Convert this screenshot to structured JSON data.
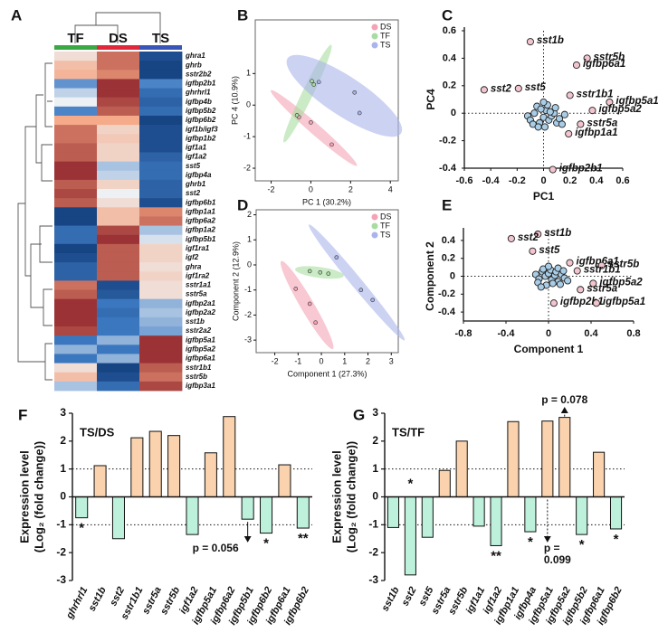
{
  "chart_data": [
    {
      "type": "heatmap",
      "panel": "A",
      "columns": [
        {
          "name": "TF",
          "color": "#3aa845"
        },
        {
          "name": "DS",
          "color": "#e0283c"
        },
        {
          "name": "TS",
          "color": "#3a55b8"
        }
      ],
      "rows": [
        "ghra1",
        "ghrb",
        "sstr2b2",
        "igfbp2b1",
        "ghrhrl1",
        "igfbp4b",
        "igfbp5b2",
        "igfbp6b2",
        "igf1b/igf3",
        "igfbp1b2",
        "igf1a1",
        "igf1a2",
        "sst5",
        "igfbp4a",
        "ghrb1",
        "sst2",
        "igfbp6b1",
        "igfbp1a1",
        "igfbp6a2",
        "igfbp1a2",
        "igfbp5b1",
        "igf1ra1",
        "igf2",
        "ghra",
        "igf1ra2",
        "sstr1a1",
        "sstr5a",
        "igfbp2a1",
        "igfbp2a2",
        "sst1b",
        "sstr2a2",
        "igfbp5a1",
        "igfbp5a2",
        "igfbp6a1",
        "sstr1b1",
        "sstr5b",
        "igfbp3a1"
      ],
      "values": [
        [
          0.2,
          1.0,
          -1.2
        ],
        [
          0.5,
          1.0,
          -1.3
        ],
        [
          0.6,
          0.9,
          -1.3
        ],
        [
          -0.6,
          1.3,
          -0.7
        ],
        [
          -0.2,
          1.3,
          -0.9
        ],
        [
          0.0,
          1.2,
          -1.0
        ],
        [
          -0.7,
          1.1,
          -0.9
        ],
        [
          0.7,
          0.7,
          -1.3
        ],
        [
          1.0,
          0.3,
          -1.2
        ],
        [
          1.0,
          0.4,
          -1.2
        ],
        [
          1.1,
          0.3,
          -1.2
        ],
        [
          1.1,
          0.3,
          -1.0
        ],
        [
          1.3,
          -0.3,
          -0.9
        ],
        [
          1.3,
          -0.2,
          -0.9
        ],
        [
          1.1,
          0.3,
          -1.0
        ],
        [
          1.2,
          0.0,
          -1.0
        ],
        [
          1.1,
          0.2,
          -1.2
        ],
        [
          -1.3,
          0.5,
          0.9
        ],
        [
          -1.3,
          0.5,
          1.0
        ],
        [
          -0.9,
          1.2,
          -0.3
        ],
        [
          -0.9,
          1.3,
          -0.1
        ],
        [
          -1.3,
          1.1,
          0.3
        ],
        [
          -1.2,
          1.1,
          0.3
        ],
        [
          -1.0,
          1.1,
          0.2
        ],
        [
          -1.0,
          1.1,
          0.3
        ],
        [
          1.0,
          -1.2,
          0.2
        ],
        [
          1.1,
          -1.1,
          0.2
        ],
        [
          1.3,
          -0.8,
          -0.4
        ],
        [
          1.3,
          -0.9,
          -0.3
        ],
        [
          1.3,
          -0.8,
          -0.4
        ],
        [
          1.2,
          -0.8,
          -0.5
        ],
        [
          -0.8,
          -0.4,
          1.3
        ],
        [
          -0.4,
          -0.8,
          1.3
        ],
        [
          -0.8,
          -0.4,
          1.3
        ],
        [
          0.2,
          -1.3,
          1.1
        ],
        [
          0.5,
          -1.2,
          1.0
        ],
        [
          -0.3,
          -0.9,
          1.2
        ]
      ],
      "clim": [
        -1.5,
        1.5
      ],
      "colormap": [
        "#08306b",
        "#3f7cc4",
        "#eef1f4",
        "#f5a582",
        "#7a0a1a"
      ]
    },
    {
      "type": "scatter",
      "panel": "B",
      "frame": "box",
      "xlabel": "PC 1 (30.2%)",
      "ylabel": "PC 4 (10.9%)",
      "xlim": [
        -2.8,
        4.4
      ],
      "ylim": [
        -2.4,
        2.7
      ],
      "xticks": [
        -2,
        0,
        2,
        4
      ],
      "yticks": [
        -2,
        -1,
        0,
        1
      ],
      "legend": "upper right",
      "series": [
        {
          "name": "DS",
          "color": "#f4a3b5",
          "x": [
            -0.6,
            0.0,
            1.05
          ],
          "values": [
            -0.38,
            -0.55,
            -1.25
          ]
        },
        {
          "name": "TF",
          "color": "#a8dca0",
          "x": [
            -0.7,
            0.05,
            0.15
          ],
          "values": [
            -0.32,
            0.76,
            0.65
          ]
        },
        {
          "name": "TS",
          "color": "#aab4ea",
          "x": [
            0.4,
            2.2,
            2.45
          ],
          "values": [
            0.73,
            0.4,
            -0.25
          ]
        }
      ]
    },
    {
      "type": "scatter",
      "panel": "C",
      "frame": "axes",
      "zero_lines": true,
      "xlabel": "PC1",
      "ylabel": "PC4",
      "xlim": [
        -0.6,
        0.6
      ],
      "ylim": [
        -0.4,
        0.6
      ],
      "xticks": [
        -0.6,
        -0.4,
        -0.2,
        0,
        0.2,
        0.4,
        0.6
      ],
      "yticks": [
        -0.4,
        -0.2,
        0,
        0.2,
        0.4,
        0.6
      ],
      "label_color": "#f2c4ce",
      "point_color": "#a9cde6",
      "x": [
        -0.1,
        0.33,
        0.25,
        -0.45,
        -0.19,
        0.2,
        0.5,
        0.37,
        0.28,
        0.19,
        0.07,
        -0.12,
        -0.1,
        -0.07,
        -0.05,
        -0.03,
        0.0,
        0.02,
        0.04,
        0.06,
        0.08,
        0.1,
        0.12,
        0.03,
        -0.02,
        0.0,
        0.05,
        -0.08,
        0.14,
        0.09,
        -0.04,
        0.01,
        0.16
      ],
      "values": [
        0.52,
        0.4,
        0.35,
        0.17,
        0.18,
        0.13,
        0.08,
        0.02,
        -0.08,
        -0.15,
        -0.41,
        -0.02,
        -0.05,
        0.0,
        0.05,
        -0.07,
        -0.03,
        0.02,
        -0.05,
        -0.02,
        0.0,
        -0.07,
        -0.04,
        0.06,
        0.03,
        0.08,
        0.01,
        -0.08,
        -0.08,
        0.04,
        -0.1,
        -0.1,
        -0.01
      ],
      "labels": [
        "sst1b",
        "sstr5b",
        "igfbp6a1",
        "sst2",
        "sst5",
        "sstr1b1",
        "igfbp5a1",
        "igfbp5a2",
        "sstr5a",
        "igfbp1a1",
        "igfbp2b1",
        null,
        null,
        null,
        null,
        null,
        null,
        null,
        null,
        null,
        null,
        null,
        null,
        null,
        null,
        null,
        null,
        null,
        null,
        null,
        null,
        null,
        null
      ]
    },
    {
      "type": "scatter",
      "panel": "D",
      "frame": "box",
      "xlabel": "Component 1 (27.3%)",
      "ylabel": "Component 2 (12.9%)",
      "xlim": [
        -2.8,
        3.3
      ],
      "ylim": [
        -3.5,
        2.2
      ],
      "xticks": [
        -2,
        -1,
        0,
        1,
        2,
        3
      ],
      "yticks": [
        -3,
        -2,
        -1,
        0,
        1,
        2
      ],
      "legend": "upper right",
      "series": [
        {
          "name": "DS",
          "color": "#f4a3b5",
          "x": [
            -1.1,
            -0.5,
            -0.25
          ],
          "values": [
            -0.95,
            -1.55,
            -2.3
          ]
        },
        {
          "name": "TF",
          "color": "#a8dca0",
          "x": [
            -0.5,
            -0.05,
            0.3
          ],
          "values": [
            -0.25,
            -0.3,
            -0.35
          ]
        },
        {
          "name": "TS",
          "color": "#aab4ea",
          "x": [
            0.65,
            1.7,
            2.2
          ],
          "values": [
            0.3,
            -1.0,
            -1.4
          ]
        }
      ]
    },
    {
      "type": "scatter",
      "panel": "E",
      "frame": "axes",
      "zero_lines": true,
      "xlabel": "Component 1",
      "ylabel": "Component 2",
      "xlim": [
        -0.8,
        0.8
      ],
      "ylim": [
        -0.5,
        0.5
      ],
      "xticks": [
        -0.8,
        -0.4,
        0,
        0.4,
        0.8
      ],
      "yticks": [
        -0.4,
        -0.2,
        0,
        0.2,
        0.4
      ],
      "label_color": "#f2c4ce",
      "point_color": "#a9cde6",
      "x": [
        -0.1,
        -0.35,
        -0.15,
        0.2,
        0.5,
        0.27,
        0.42,
        0.3,
        0.05,
        0.45,
        -0.12,
        -0.09,
        -0.06,
        -0.03,
        0.0,
        0.03,
        0.06,
        0.09,
        0.12,
        0.15,
        -0.1,
        -0.05,
        0.02,
        0.07,
        0.11,
        -0.02,
        0.04,
        0.09,
        -0.07,
        0.14,
        0.0,
        0.18
      ],
      "values": [
        0.47,
        0.42,
        0.28,
        0.15,
        0.12,
        0.06,
        -0.08,
        -0.15,
        -0.3,
        -0.3,
        0.02,
        -0.03,
        0.05,
        0.0,
        0.03,
        -0.04,
        0.01,
        -0.06,
        0.02,
        -0.02,
        -0.07,
        0.08,
        0.07,
        0.05,
        -0.09,
        -0.1,
        -0.08,
        0.09,
        -0.12,
        0.06,
        0.11,
        -0.05
      ],
      "labels": [
        "sst1b",
        "sst2",
        "sst5",
        "igfbp6a1",
        "sstr5b",
        "sstr1b1",
        "igfbp5a2",
        "sstr5a",
        "igfbp2b1",
        "igfbp5a1",
        null,
        null,
        null,
        null,
        null,
        null,
        null,
        null,
        null,
        null,
        null,
        null,
        null,
        null,
        null,
        null,
        null,
        null,
        null,
        null,
        null,
        null
      ]
    },
    {
      "type": "bar",
      "panel": "F",
      "title": "TS/DS",
      "ylabel": [
        "Expression level",
        "(Log₂ (fold change))"
      ],
      "ylim": [
        -3,
        3
      ],
      "yticks": [
        -3,
        -2,
        -1,
        0,
        1,
        2,
        3
      ],
      "ref_lines": [
        1,
        -1
      ],
      "pos_color": "#fad2ad",
      "neg_color": "#bdf1dc",
      "categories": [
        "ghrhrl1",
        "sst1b",
        "sst2",
        "sstr1b1",
        "sstr5a",
        "sstr5b",
        "igf1a2",
        "igfbp5a1",
        "igfbp6a2",
        "igfbp5b1",
        "igfbp6b2",
        "igfbp6a1",
        "igfbp6b2"
      ],
      "values": [
        -0.75,
        1.12,
        -1.5,
        2.12,
        2.35,
        2.2,
        -1.35,
        1.58,
        2.88,
        -0.8,
        -1.3,
        1.15,
        -1.12
      ],
      "significance": [
        "*",
        null,
        null,
        null,
        null,
        null,
        null,
        null,
        null,
        null,
        "*",
        null,
        "**"
      ],
      "notes": [
        {
          "index": 9,
          "text": [
            "p = 0.056"
          ],
          "side": "bottom"
        }
      ]
    },
    {
      "type": "bar",
      "panel": "G",
      "title": "TS/TF",
      "ylabel": [
        "Expression level",
        "(Log₂ (fold change))"
      ],
      "ylim": [
        -3,
        3
      ],
      "yticks": [
        -3,
        -2,
        -1,
        0,
        1,
        2,
        3
      ],
      "ref_lines": [
        1,
        -1
      ],
      "pos_color": "#fad2ad",
      "neg_color": "#bdf1dc",
      "categories": [
        "sst1b",
        "sst2",
        "sst5",
        "sstr5a",
        "sstr5b",
        "igf1a1",
        "igf1a2",
        "igfbp1a1",
        "igfbp4a",
        "igfbp5a1",
        "igfbp5a2",
        "igfbp5b2",
        "igfbp6a1",
        "igfbp6b2"
      ],
      "values": [
        -1.1,
        -2.8,
        -1.45,
        0.95,
        2.0,
        -1.05,
        -1.75,
        2.7,
        -1.25,
        2.72,
        2.85,
        -1.35,
        1.6,
        -1.15
      ],
      "significance": [
        null,
        "*",
        null,
        null,
        null,
        null,
        "**",
        null,
        "*",
        null,
        null,
        "*",
        null,
        "*"
      ],
      "notes": [
        {
          "index": 10,
          "text": [
            "p = 0.078"
          ],
          "side": "top"
        },
        {
          "index": 9,
          "text": [
            "p =",
            "0.099"
          ],
          "side": "bottom"
        }
      ]
    }
  ]
}
